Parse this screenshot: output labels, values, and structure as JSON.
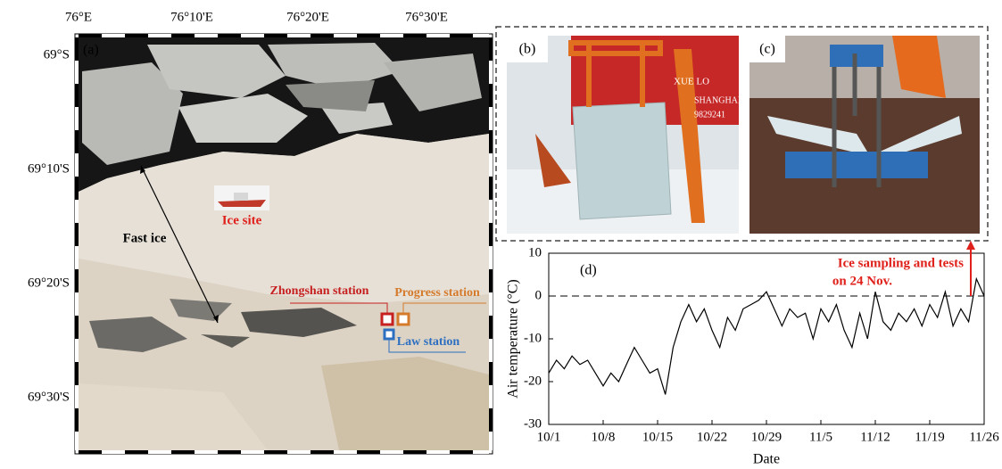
{
  "map": {
    "panel_label": "(a)",
    "lon_labels": [
      "76°E",
      "76°10'E",
      "76°20'E",
      "76°30'E"
    ],
    "lat_labels": [
      "69°S",
      "69°10'S",
      "69°20'S",
      "69°30'S"
    ],
    "fast_ice": "Fast ice",
    "ice_site": "Ice site",
    "zhongshan": "Zhongshan station",
    "progress": "Progress station",
    "law": "Law station"
  },
  "photos": {
    "b": {
      "panel_label": "(b)",
      "ship_text": [
        "XUE LO",
        "SHANGHAI",
        "9829241"
      ]
    },
    "c": {
      "panel_label": "(c)"
    }
  },
  "chart_data": {
    "type": "line",
    "panel_label": "(d)",
    "x_label": "Date",
    "y_label": "Air temperature (°C)",
    "annotation": [
      "Ice sampling and tests",
      "on 24 Nov."
    ],
    "color": "#000000",
    "hline": 0,
    "x": [
      0,
      1,
      2,
      3,
      4,
      5,
      6,
      7,
      8,
      9,
      10,
      11,
      12,
      13,
      14,
      15,
      16,
      17,
      18,
      19,
      20,
      21,
      22,
      23,
      24,
      25,
      26,
      27,
      28,
      29,
      30,
      31,
      32,
      33,
      34,
      35,
      36,
      37,
      38,
      39,
      40,
      41,
      42,
      43,
      44,
      45,
      46,
      47,
      48,
      49,
      50,
      51,
      52,
      53,
      54,
      55,
      56
    ],
    "values": [
      -18,
      -15,
      -17,
      -14,
      -16,
      -15,
      -18,
      -21,
      -18,
      -20,
      -16,
      -12,
      -15,
      -18,
      -17,
      -23,
      -12,
      -6,
      -2,
      -6,
      -3,
      -8,
      -12,
      -5,
      -8,
      -3,
      -2,
      -1,
      1,
      -3,
      -7,
      -3,
      -5,
      -4,
      -10,
      -3,
      -6,
      -2,
      -8,
      -12,
      -4,
      -10,
      1,
      -6,
      -8,
      -4,
      -6,
      -3,
      -7,
      -2,
      -5,
      1,
      -7,
      -3,
      -6,
      4,
      0
    ],
    "xlim": [
      0,
      56
    ],
    "xticks": [
      {
        "value": 0,
        "label": "10/1"
      },
      {
        "value": 7,
        "label": "10/8"
      },
      {
        "value": 14,
        "label": "10/15"
      },
      {
        "value": 21,
        "label": "10/22"
      },
      {
        "value": 28,
        "label": "10/29"
      },
      {
        "value": 35,
        "label": "11/5"
      },
      {
        "value": 42,
        "label": "11/12"
      },
      {
        "value": 49,
        "label": "11/19"
      },
      {
        "value": 56,
        "label": "11/26"
      }
    ],
    "ylim": [
      -30,
      10
    ],
    "yticks": [
      -30,
      -20,
      -10,
      0,
      10
    ]
  }
}
